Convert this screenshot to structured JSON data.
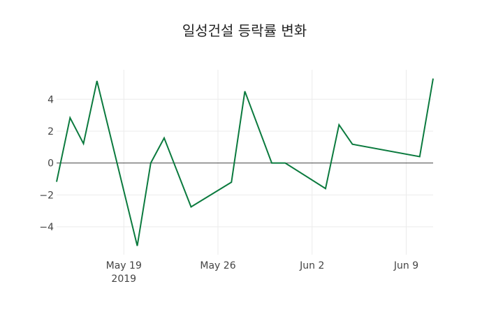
{
  "chart_data": {
    "type": "line",
    "title": "일성건설 등락률 변화",
    "xlabel": "",
    "ylabel": "",
    "x": [
      "2019-05-14",
      "2019-05-15",
      "2019-05-16",
      "2019-05-17",
      "2019-05-20",
      "2019-05-21",
      "2019-05-22",
      "2019-05-23",
      "2019-05-24",
      "2019-05-27",
      "2019-05-28",
      "2019-05-30",
      "2019-05-31",
      "2019-06-03",
      "2019-06-04",
      "2019-06-05",
      "2019-06-10",
      "2019-06-11"
    ],
    "series": [
      {
        "name": "등락률",
        "color": "#0b7a3e",
        "values": [
          -1.18,
          2.84,
          1.22,
          5.15,
          -5.2,
          0.0,
          1.57,
          -0.6,
          -2.75,
          -1.2,
          4.5,
          0.0,
          0.0,
          -1.6,
          2.4,
          1.18,
          0.4,
          5.3
        ]
      }
    ],
    "x_ticks": [
      {
        "date": "2019-05-19",
        "label": "May 19",
        "sublabel": "2019"
      },
      {
        "date": "2019-05-26",
        "label": "May 26",
        "sublabel": ""
      },
      {
        "date": "2019-06-02",
        "label": "Jun 2",
        "sublabel": ""
      },
      {
        "date": "2019-06-09",
        "label": "Jun 9",
        "sublabel": ""
      }
    ],
    "y_ticks": [
      -4,
      -2,
      0,
      2,
      4
    ],
    "y_tick_labels": [
      "−4",
      "−2",
      "0",
      "2",
      "4"
    ],
    "ylim": [
      -5.75,
      5.85
    ],
    "xlim": [
      "2019-05-14",
      "2019-06-11"
    ],
    "grid": true,
    "zero_line": true,
    "legend": "none"
  }
}
